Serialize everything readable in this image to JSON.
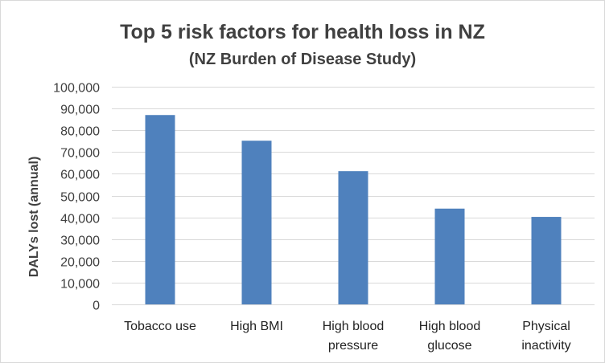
{
  "chart_data": {
    "type": "bar",
    "title": "Top 5 risk factors for health loss in NZ",
    "subtitle": "(NZ Burden of Disease Study)",
    "xlabel": "",
    "ylabel": "DALYs lost (annual)",
    "ylim": [
      0,
      100000
    ],
    "y_ticks": [
      "0",
      "10,000",
      "20,000",
      "30,000",
      "40,000",
      "50,000",
      "60,000",
      "70,000",
      "80,000",
      "90,000",
      "100,000"
    ],
    "categories": [
      [
        "Tobacco use"
      ],
      [
        "High BMI"
      ],
      [
        "High blood",
        "pressure"
      ],
      [
        "High blood",
        "glucose"
      ],
      [
        "Physical",
        "inactivity"
      ]
    ],
    "values": [
      87000,
      75200,
      61200,
      44000,
      40200
    ],
    "grid": true,
    "legend": "none",
    "bar_color": "#4f81bd",
    "grid_color": "#d9d9d9"
  }
}
